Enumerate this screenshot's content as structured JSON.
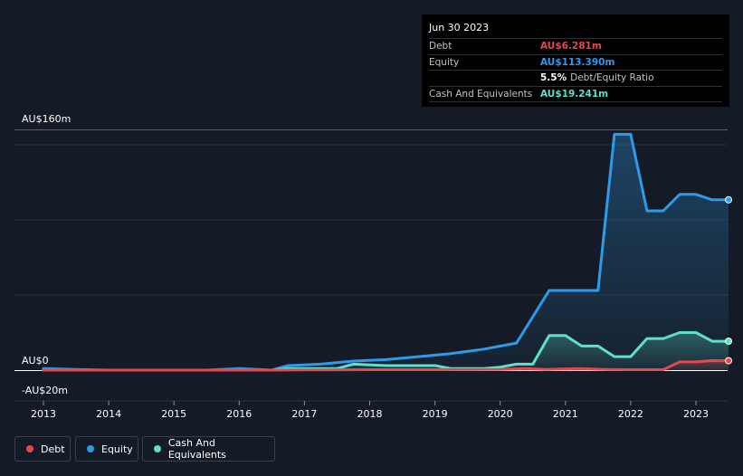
{
  "tooltip": {
    "date": "Jun 30 2023",
    "rows": {
      "debt": {
        "label": "Debt",
        "value": "AU$6.281m"
      },
      "equity": {
        "label": "Equity",
        "value": "AU$113.390m"
      },
      "ratio": {
        "value": "5.5%",
        "label": "Debt/Equity Ratio"
      },
      "cash": {
        "label": "Cash And Equivalents",
        "value": "AU$19.241m"
      }
    }
  },
  "colors": {
    "debt": "#e5484d",
    "equity": "#2e9bea",
    "cash": "#5fe0c8",
    "background": "#151b26"
  },
  "legend": {
    "debt": "Debt",
    "equity": "Equity",
    "cash": "Cash And Equivalents"
  },
  "chart_data": {
    "type": "area",
    "y_ticks": [
      "AU$160m",
      "AU$0",
      "-AU$20m"
    ],
    "ylim": [
      -20,
      160
    ],
    "x_ticks": [
      "2013",
      "2014",
      "2015",
      "2016",
      "2017",
      "2018",
      "2019",
      "2020",
      "2021",
      "2022",
      "2023"
    ],
    "xlim": [
      2013,
      2023.5
    ],
    "grid": true,
    "legend_position": "bottom-left",
    "series": [
      {
        "name": "Debt",
        "x": [
          2013.0,
          2016.5,
          2017.0,
          2018.0,
          2019.0,
          2020.0,
          2020.4,
          2020.7,
          2021.2,
          2021.6,
          2022.0,
          2022.5,
          2022.75,
          2023.0,
          2023.25,
          2023.5
        ],
        "y": [
          0,
          0,
          0.2,
          0.3,
          0.3,
          0.5,
          1.0,
          0.5,
          1.0,
          0.5,
          0.3,
          0.3,
          5.5,
          5.5,
          6.3,
          6.281
        ]
      },
      {
        "name": "Equity",
        "x": [
          2013.0,
          2013.5,
          2014.0,
          2015.0,
          2015.5,
          2016.0,
          2016.5,
          2016.75,
          2017.25,
          2017.75,
          2018.25,
          2018.75,
          2019.25,
          2019.75,
          2020.25,
          2020.75,
          2021.5,
          2021.75,
          2022.0,
          2022.25,
          2022.5,
          2022.75,
          2023.0,
          2023.25,
          2023.5
        ],
        "y": [
          1,
          0.5,
          0,
          0,
          0,
          1,
          0,
          3,
          4,
          6,
          7,
          9,
          11,
          14,
          18,
          53,
          53,
          157,
          157,
          106,
          106,
          117,
          117,
          113.4,
          113.39
        ]
      },
      {
        "name": "Cash And Equivalents",
        "x": [
          2013.0,
          2016.5,
          2016.75,
          2017.5,
          2017.75,
          2018.25,
          2019.0,
          2019.25,
          2019.75,
          2020.0,
          2020.25,
          2020.5,
          2020.75,
          2021.0,
          2021.25,
          2021.5,
          2021.75,
          2022.0,
          2022.25,
          2022.5,
          2022.75,
          2023.0,
          2023.25,
          2023.5
        ],
        "y": [
          0,
          0,
          1,
          1,
          4,
          3,
          3,
          1,
          1,
          2,
          4,
          4,
          23,
          23,
          16,
          16,
          9,
          9,
          21,
          21,
          25,
          25,
          19.2,
          19.241
        ]
      }
    ]
  }
}
